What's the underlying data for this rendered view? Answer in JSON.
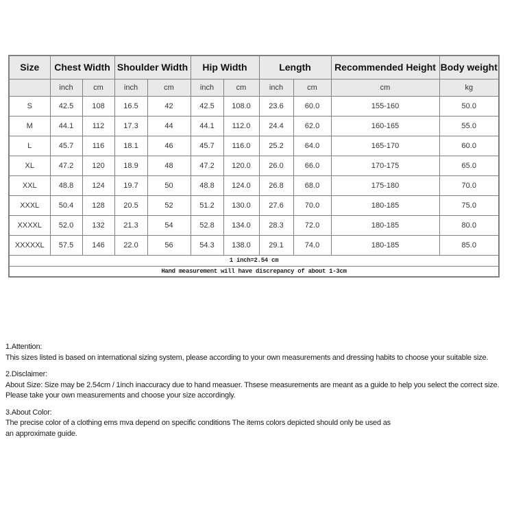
{
  "colors": {
    "page_bg": "#ffffff",
    "header_bg": "#e9e9e9",
    "border": "#808080",
    "text": "#1a1a1a"
  },
  "table": {
    "header": {
      "size": "Size",
      "groups": [
        {
          "label": "Chest Width",
          "span": 2
        },
        {
          "label": "Shoulder Width",
          "span": 2
        },
        {
          "label": "Hip Width",
          "span": 2
        },
        {
          "label": "Length",
          "span": 2
        },
        {
          "label": "Recommended Height",
          "span": 1
        },
        {
          "label": "Body weight",
          "span": 1
        }
      ],
      "units": [
        "",
        "inch",
        "cm",
        "inch",
        "cm",
        "inch",
        "cm",
        "inch",
        "cm",
        "cm",
        "kg"
      ]
    },
    "rows": [
      {
        "cells": [
          "S",
          "42.5",
          "108",
          "16.5",
          "42",
          "42.5",
          "108.0",
          "23.6",
          "60.0",
          "155-160",
          "50.0"
        ]
      },
      {
        "cells": [
          "M",
          "44.1",
          "112",
          "17.3",
          "44",
          "44.1",
          "112.0",
          "24.4",
          "62.0",
          "160-165",
          "55.0"
        ]
      },
      {
        "cells": [
          "L",
          "45.7",
          "116",
          "18.1",
          "46",
          "45.7",
          "116.0",
          "25.2",
          "64.0",
          "165-170",
          "60.0"
        ]
      },
      {
        "cells": [
          "XL",
          "47.2",
          "120",
          "18.9",
          "48",
          "47.2",
          "120.0",
          "26.0",
          "66.0",
          "170-175",
          "65.0"
        ]
      },
      {
        "cells": [
          "XXL",
          "48.8",
          "124",
          "19.7",
          "50",
          "48.8",
          "124.0",
          "26.8",
          "68.0",
          "175-180",
          "70.0"
        ]
      },
      {
        "cells": [
          "XXXL",
          "50.4",
          "128",
          "20.5",
          "52",
          "51.2",
          "130.0",
          "27.6",
          "70.0",
          "180-185",
          "75.0"
        ]
      },
      {
        "cells": [
          "XXXXL",
          "52.0",
          "132",
          "21.3",
          "54",
          "52.8",
          "134.0",
          "28.3",
          "72.0",
          "180-185",
          "80.0"
        ]
      },
      {
        "cells": [
          "XXXXXL",
          "57.5",
          "146",
          "22.0",
          "56",
          "54.3",
          "138.0",
          "29.1",
          "74.0",
          "180-185",
          "85.0"
        ]
      }
    ],
    "footers": [
      "1 inch=2.54 cm",
      "Hand measurement will have discrepancy of about 1-3cm"
    ]
  },
  "notes": {
    "attention": {
      "heading": "1.Attention:",
      "lines": [
        "This sizes listed is based on international sizing system, please according to your own measurements and dressing habits to choose your suitable size."
      ]
    },
    "disclaimer": {
      "heading": "2.Disclaimer:",
      "lines": [
        "About Size: Size may be 2.54cm / 1inch inaccuracy due to hand measuer. Thsese measurements are meant as a guide to help you select the correct size.",
        "Please take your own measurements and choose your size accordingly."
      ]
    },
    "about_color": {
      "heading": "3.About Color:",
      "lines": [
        "The precise color of a clothing ems mva depend on specific conditions The items colors depicted should only be used as",
        "an approximate guide."
      ]
    }
  }
}
